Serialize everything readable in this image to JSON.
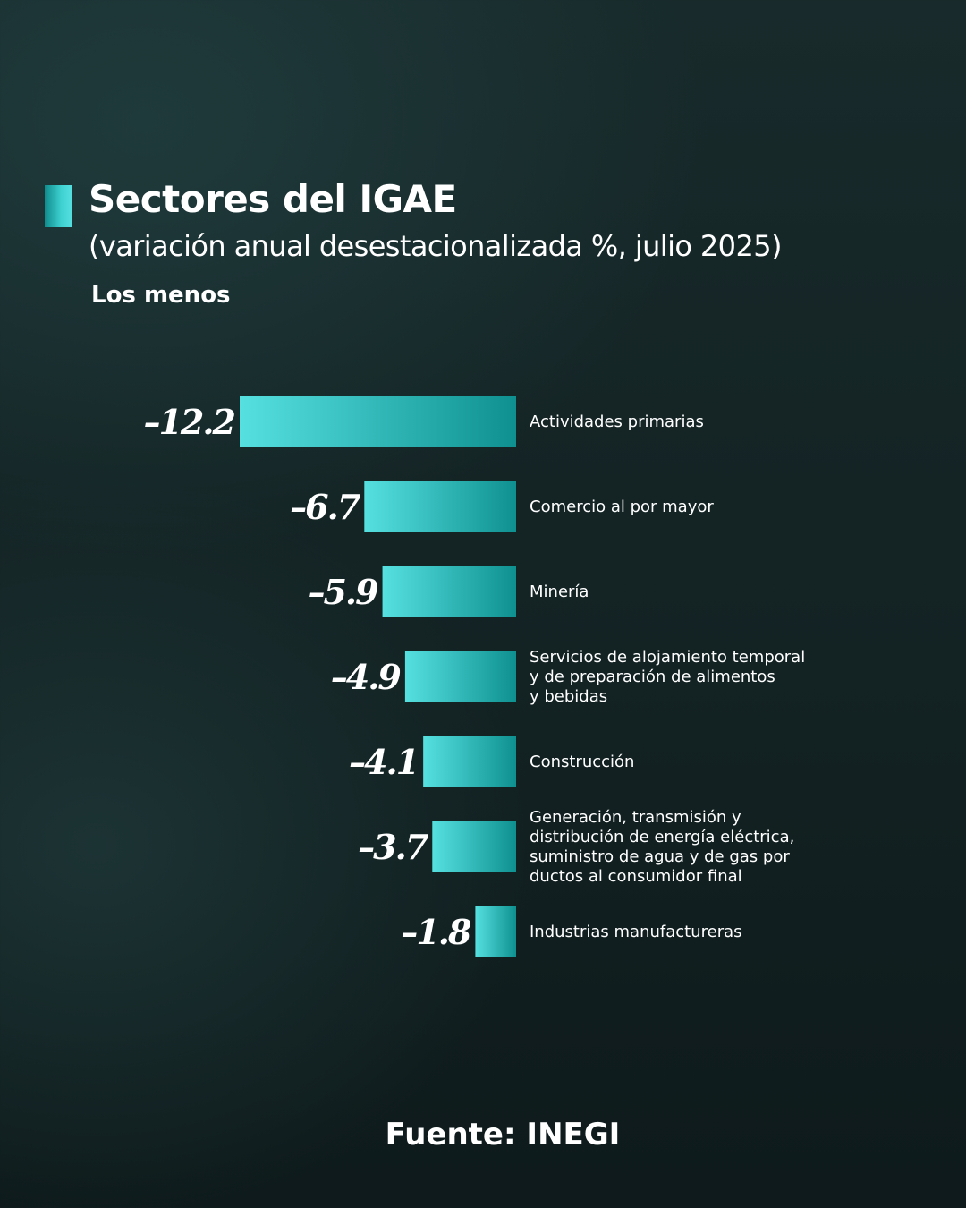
{
  "header": {
    "title": "Sectores del IGAE",
    "subtitle": "(variación anual desestacionalizada %, julio 2025)",
    "section_label": "Los menos"
  },
  "footer": {
    "source": "Fuente: INEGI"
  },
  "colors": {
    "bar_light": "#56e0e0",
    "bar_dark": "#0f9090",
    "background": "#152728",
    "text": "#ffffff"
  },
  "chart_data": {
    "type": "bar",
    "orientation": "horizontal",
    "title": "Sectores del IGAE",
    "subtitle": "(variación anual desestacionalizada %, julio 2025)",
    "categories": [
      "Actividades primarias",
      "Comercio al por mayor",
      "Minería",
      "Servicios de alojamiento temporal y de preparación de alimentos y bebidas",
      "Construcción",
      "Generación, transmisión y distribución de energía eléctrica, suministro de agua y de gas por ductos al consumidor final",
      "Industrias manufactureras"
    ],
    "category_lines": [
      [
        "Actividades primarias"
      ],
      [
        "Comercio al por mayor"
      ],
      [
        "Minería"
      ],
      [
        "Servicios de alojamiento temporal",
        "y de preparación de alimentos",
        "y bebidas"
      ],
      [
        "Construcción"
      ],
      [
        "Generación, transmisión y",
        "distribución de energía eléctrica,",
        "suministro de agua y de gas por",
        "ductos al consumidor final"
      ],
      [
        "Industrias manufactureras"
      ]
    ],
    "values": [
      -12.2,
      -6.7,
      -5.9,
      -4.9,
      -4.1,
      -3.7,
      -1.8
    ],
    "value_labels": [
      "–12.2",
      "–6.7",
      "–5.9",
      "–4.9",
      "–4.1",
      "–3.7",
      "–1.8"
    ],
    "xlim": [
      -12.2,
      0
    ],
    "grid": false,
    "legend": "none"
  }
}
